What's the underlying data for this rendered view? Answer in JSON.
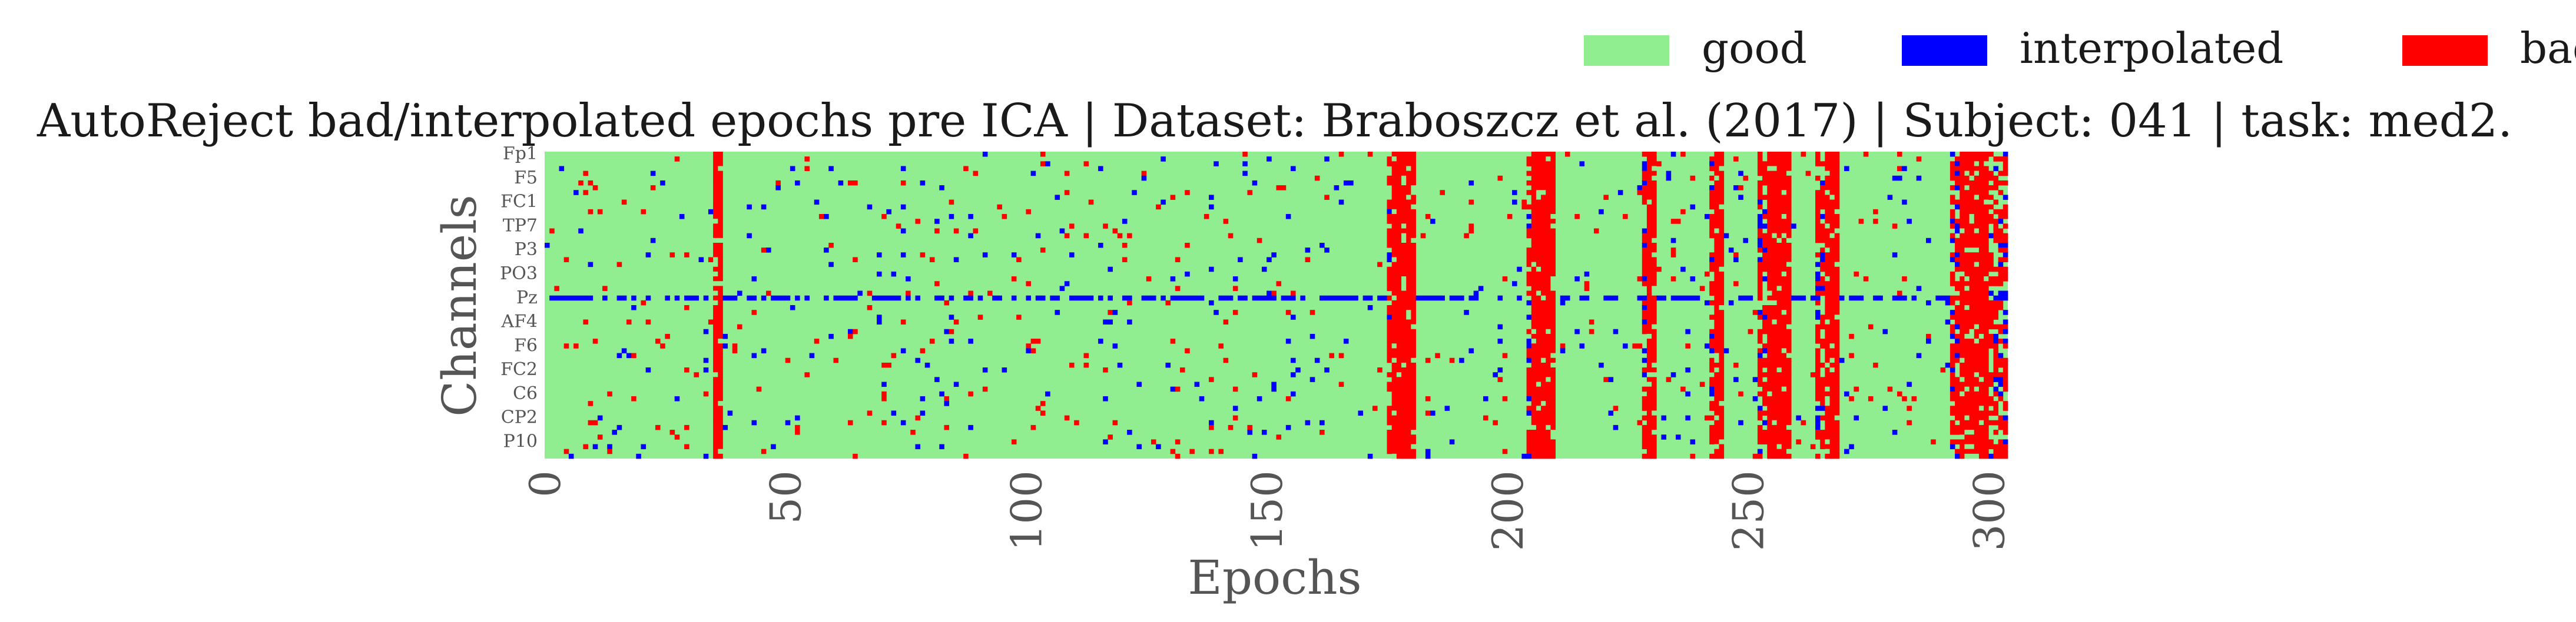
{
  "chart_data": {
    "type": "heatmap",
    "title": "AutoReject bad/interpolated epochs pre ICA | Dataset: Braboszcz et al. (2017) | Subject: 041 | task: med2.",
    "xlabel": "Epochs",
    "ylabel": "Channels",
    "xlim": [
      0,
      304
    ],
    "x_ticks": [
      0,
      50,
      100,
      150,
      200,
      250,
      300
    ],
    "n_epochs": 304,
    "n_channels": 64,
    "channel_tick_labels": [
      "Fp1",
      "F5",
      "FC1",
      "TP7",
      "P3",
      "PO3",
      "Pz",
      "AF4",
      "F6",
      "FC2",
      "C6",
      "CP2",
      "P10"
    ],
    "channel_tick_indices": [
      0,
      5,
      10,
      15,
      20,
      25,
      30,
      35,
      40,
      45,
      50,
      55,
      60
    ],
    "legend": [
      {
        "label": "good",
        "color": "#90ee90"
      },
      {
        "label": "interpolated",
        "color": "#0000ff"
      },
      {
        "label": "bad",
        "color": "#ff0000"
      }
    ],
    "legend_position": "top-right",
    "grid": false,
    "bad_epochs": [
      35,
      36,
      176,
      177,
      178,
      179,
      180,
      205,
      206,
      207,
      208,
      209,
      229,
      230,
      243,
      244,
      254,
      255,
      256,
      257,
      258,
      266,
      267,
      268,
      294,
      295,
      296,
      297,
      298,
      299
    ],
    "dense_epoch_blocks": [
      [
        175,
        181
      ],
      [
        204,
        210
      ],
      [
        228,
        231
      ],
      [
        242,
        245
      ],
      [
        252,
        259
      ],
      [
        264,
        269
      ],
      [
        292,
        304
      ]
    ],
    "mostly_interpolated_channel": "Pz",
    "mostly_interpolated_channel_index": 30
  }
}
